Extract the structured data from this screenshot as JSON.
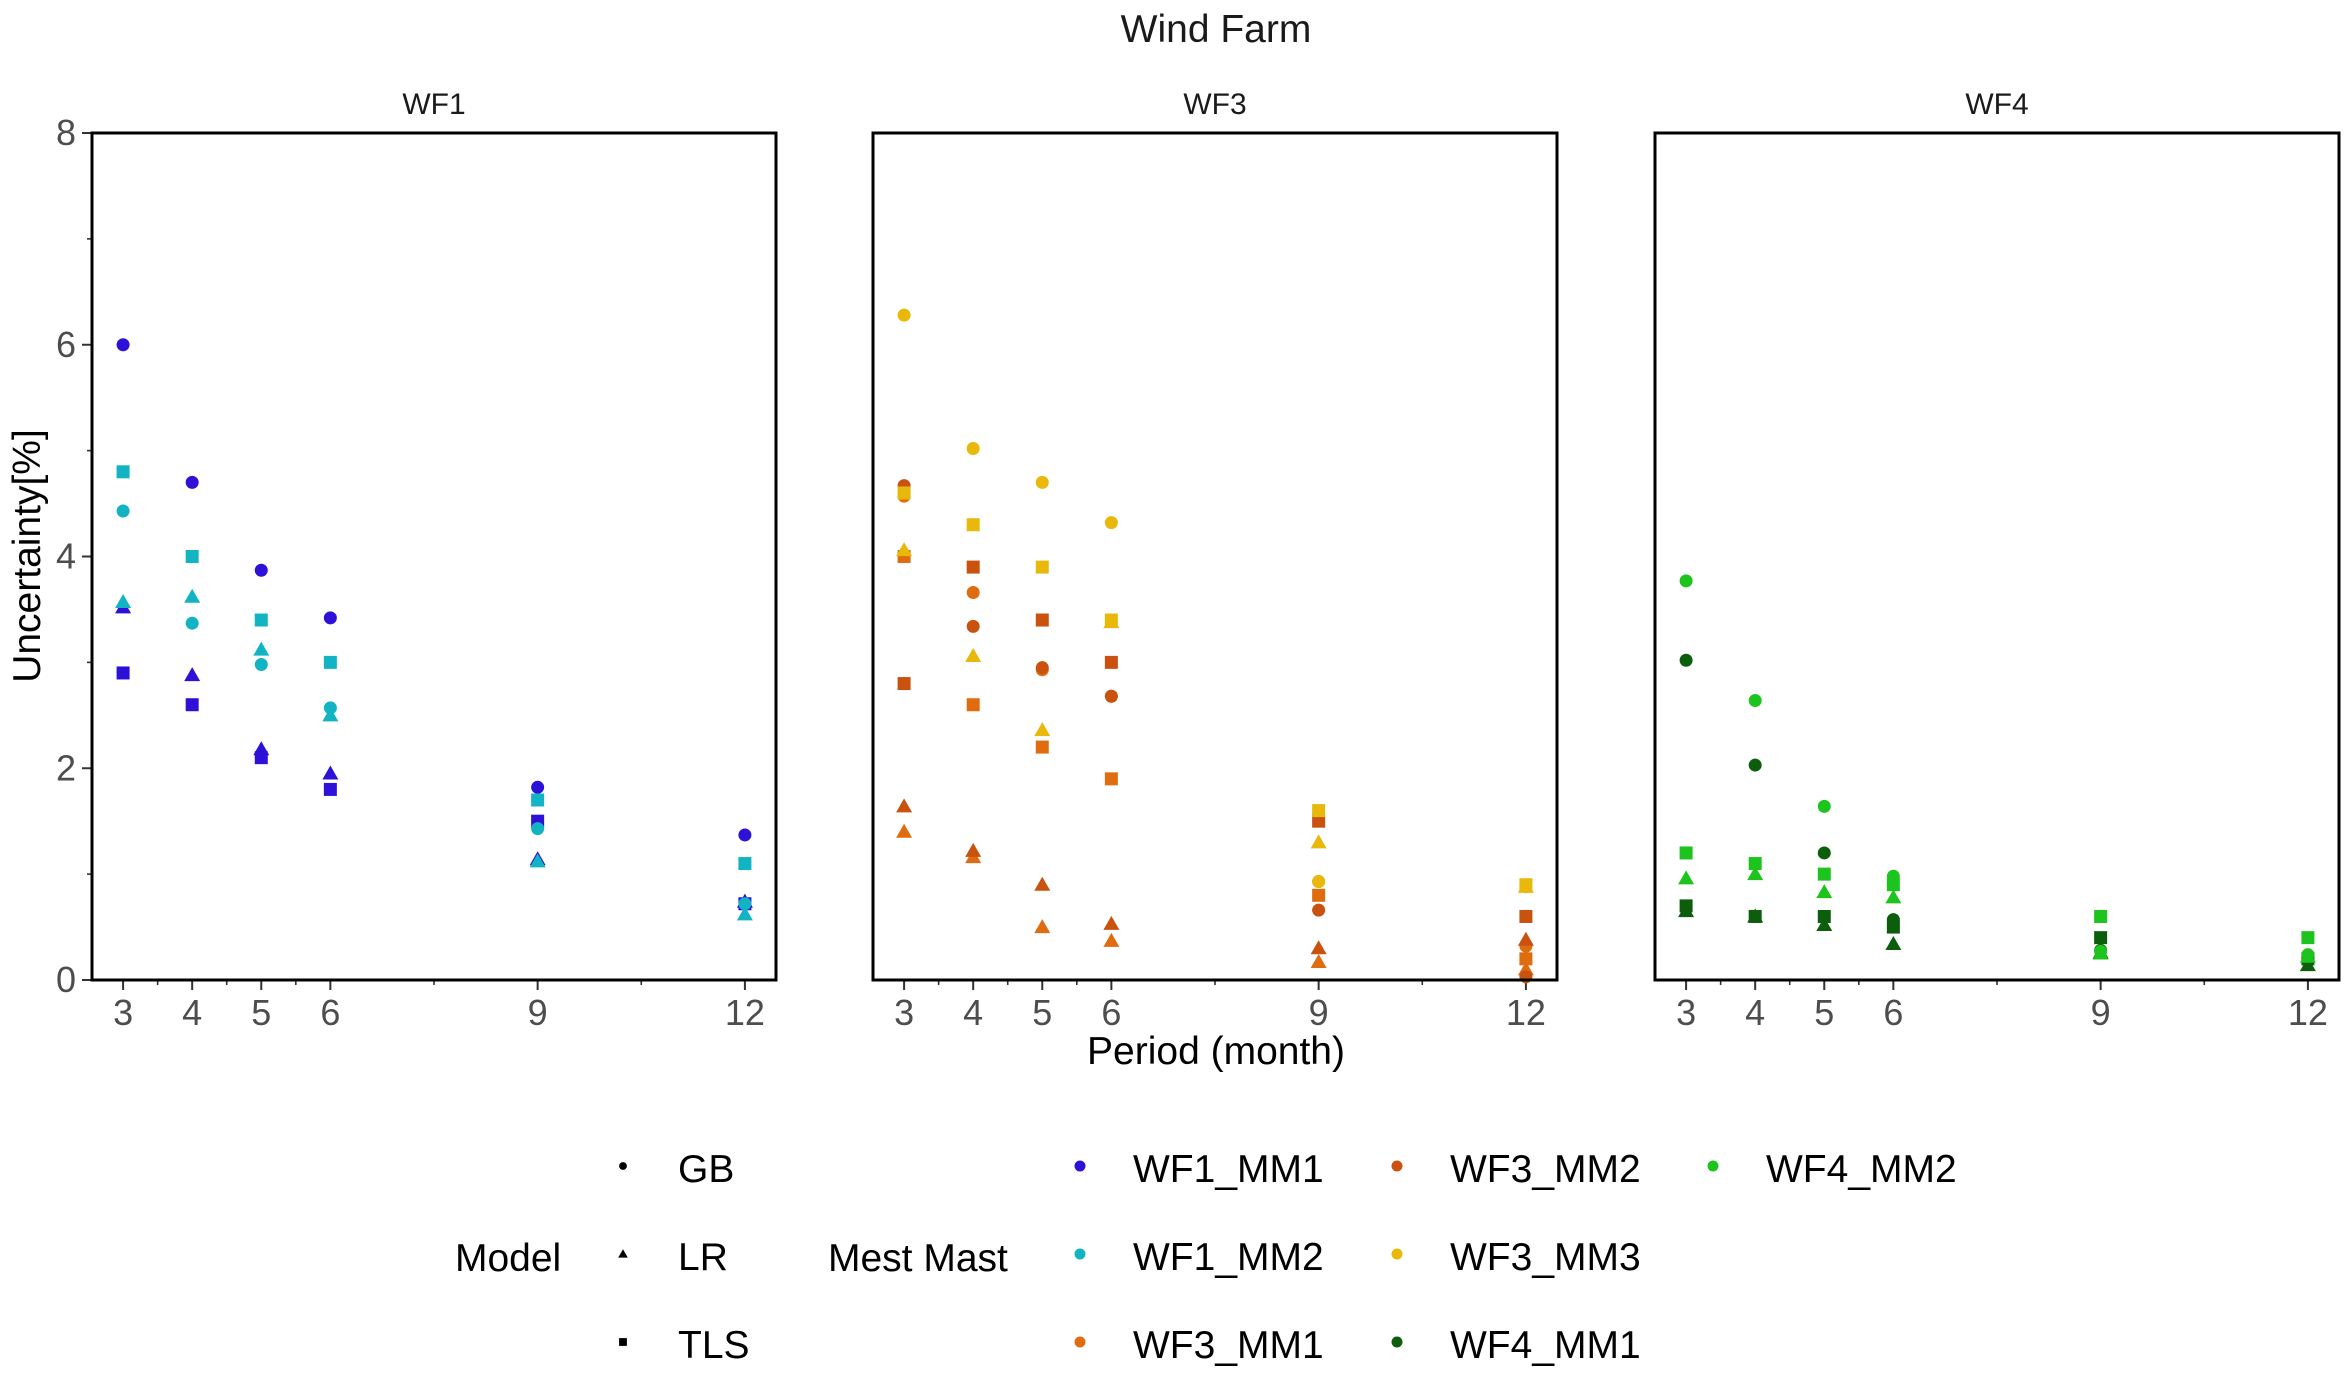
{
  "chart_data": {
    "type": "scatter",
    "title": "Wind Farm",
    "xlabel": "Period (month)",
    "ylabel": "Uncertainty[%]",
    "xticks": [
      3,
      4,
      5,
      6,
      9,
      12
    ],
    "yticks": [
      0,
      2,
      4,
      6,
      8
    ],
    "ylim": [
      0,
      8
    ],
    "xlim": [
      2.55,
      12.45
    ],
    "grid": false,
    "legend_position": "bottom",
    "shape_legend": {
      "title": "Model",
      "items": [
        {
          "label": "GB",
          "shape": "circle"
        },
        {
          "label": "LR",
          "shape": "triangle"
        },
        {
          "label": "TLS",
          "shape": "square"
        }
      ]
    },
    "color_legend": {
      "title": "Mest Mast",
      "items": [
        {
          "label": "WF1_MM1",
          "color": "#2d11d6"
        },
        {
          "label": "WF1_MM2",
          "color": "#12b4c4"
        },
        {
          "label": "WF3_MM1",
          "color": "#e06c10"
        },
        {
          "label": "WF3_MM2",
          "color": "#c9520f"
        },
        {
          "label": "WF3_MM3",
          "color": "#e8b80a"
        },
        {
          "label": "WF4_MM1",
          "color": "#0c5e0c"
        },
        {
          "label": "WF4_MM2",
          "color": "#1ec41e"
        }
      ]
    },
    "panels": [
      {
        "label": "WF1",
        "series": [
          {
            "name": "WF1_MM1",
            "model": "GB",
            "x": [
              3,
              4,
              5,
              6,
              9,
              12
            ],
            "y": [
              6.0,
              4.7,
              3.87,
              3.42,
              1.82,
              1.37
            ]
          },
          {
            "name": "WF1_MM1",
            "model": "LR",
            "x": [
              3,
              4,
              5,
              6,
              9,
              12
            ],
            "y": [
              3.52,
              2.88,
              2.18,
              1.95,
              1.14,
              0.74
            ]
          },
          {
            "name": "WF1_MM1",
            "model": "TLS",
            "x": [
              3,
              4,
              5,
              6,
              9,
              12
            ],
            "y": [
              2.9,
              2.6,
              2.1,
              1.8,
              1.5,
              0.72
            ]
          },
          {
            "name": "WF1_MM2",
            "model": "GB",
            "x": [
              3,
              4,
              5,
              6,
              9,
              12
            ],
            "y": [
              4.43,
              3.37,
              2.98,
              2.57,
              1.43,
              0.72
            ]
          },
          {
            "name": "WF1_MM2",
            "model": "LR",
            "x": [
              3,
              4,
              5,
              6,
              9,
              12
            ],
            "y": [
              3.57,
              3.62,
              3.12,
              2.5,
              1.12,
              0.62
            ]
          },
          {
            "name": "WF1_MM2",
            "model": "TLS",
            "x": [
              3,
              4,
              5,
              6,
              9,
              12
            ],
            "y": [
              4.8,
              4.0,
              3.4,
              3.0,
              1.7,
              1.1
            ]
          }
        ]
      },
      {
        "label": "WF3",
        "series": [
          {
            "name": "WF3_MM1",
            "model": "GB",
            "x": [
              3,
              4,
              5,
              6,
              9,
              12
            ],
            "y": [
              4.57,
              3.66,
              2.93,
              2.68,
              0.93,
              0.32
            ]
          },
          {
            "name": "WF3_MM1",
            "model": "LR",
            "x": [
              3,
              4,
              5,
              6,
              9,
              12
            ],
            "y": [
              1.4,
              1.16,
              0.5,
              0.37,
              0.17,
              0.1
            ]
          },
          {
            "name": "WF3_MM1",
            "model": "TLS",
            "x": [
              3,
              4,
              5,
              6,
              9,
              12
            ],
            "y": [
              4.0,
              2.6,
              2.2,
              1.9,
              0.8,
              0.2
            ]
          },
          {
            "name": "WF3_MM2",
            "model": "GB",
            "x": [
              3,
              4,
              5,
              6,
              9,
              12
            ],
            "y": [
              4.67,
              3.34,
              2.95,
              2.68,
              0.66,
              0.03
            ]
          },
          {
            "name": "WF3_MM2",
            "model": "LR",
            "x": [
              3,
              4,
              5,
              6,
              9,
              12
            ],
            "y": [
              1.64,
              1.22,
              0.9,
              0.53,
              0.3,
              0.38
            ]
          },
          {
            "name": "WF3_MM2",
            "model": "TLS",
            "x": [
              3,
              4,
              5,
              6,
              9,
              12
            ],
            "y": [
              2.8,
              3.9,
              3.4,
              3.0,
              1.5,
              0.6
            ]
          },
          {
            "name": "WF3_MM3",
            "model": "GB",
            "x": [
              3,
              4,
              5,
              6,
              9,
              12
            ],
            "y": [
              6.28,
              5.02,
              4.7,
              4.32,
              0.93,
              0.88
            ]
          },
          {
            "name": "WF3_MM3",
            "model": "LR",
            "x": [
              3,
              4,
              5,
              6,
              9,
              12
            ],
            "y": [
              4.06,
              3.06,
              2.36,
              3.38,
              1.3,
              0.88
            ]
          },
          {
            "name": "WF3_MM3",
            "model": "TLS",
            "x": [
              3,
              4,
              5,
              6,
              9,
              12
            ],
            "y": [
              4.6,
              4.3,
              3.9,
              3.4,
              1.6,
              0.9
            ]
          }
        ]
      },
      {
        "label": "WF4",
        "series": [
          {
            "name": "WF4_MM1",
            "model": "GB",
            "x": [
              3,
              4,
              5,
              6,
              9,
              12
            ],
            "y": [
              3.02,
              2.03,
              1.2,
              0.57,
              0.28,
              0.18
            ]
          },
          {
            "name": "WF4_MM1",
            "model": "LR",
            "x": [
              3,
              4,
              5,
              6,
              9,
              12
            ],
            "y": [
              0.65,
              0.6,
              0.52,
              0.34,
              0.26,
              0.14
            ]
          },
          {
            "name": "WF4_MM1",
            "model": "TLS",
            "x": [
              3,
              4,
              5,
              6,
              9,
              12
            ],
            "y": [
              0.7,
              0.6,
              0.6,
              0.5,
              0.4,
              0.2
            ]
          },
          {
            "name": "WF4_MM2",
            "model": "GB",
            "x": [
              3,
              4,
              5,
              6,
              9,
              12
            ],
            "y": [
              3.77,
              2.64,
              1.64,
              0.98,
              0.27,
              0.24
            ]
          },
          {
            "name": "WF4_MM2",
            "model": "LR",
            "x": [
              3,
              4,
              5,
              6,
              9,
              12
            ],
            "y": [
              0.96,
              1.0,
              0.83,
              0.78,
              0.25,
              0.22
            ]
          },
          {
            "name": "WF4_MM2",
            "model": "TLS",
            "x": [
              3,
              4,
              5,
              6,
              9,
              12
            ],
            "y": [
              1.2,
              1.1,
              1.0,
              0.9,
              0.6,
              0.4
            ]
          }
        ]
      }
    ]
  }
}
